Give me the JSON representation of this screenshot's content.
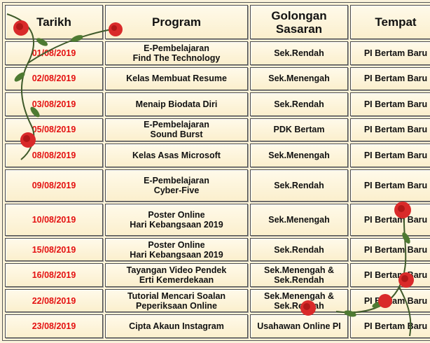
{
  "headers": {
    "date": "Tarikh",
    "program": "Program",
    "target": "Golongan\nSasaran",
    "place": "Tempat"
  },
  "rows": [
    {
      "date": "01/08/2019",
      "program": "E-Pembelajaran\nFind The Technology",
      "target": "Sek.Rendah",
      "place": "PI Bertam Baru"
    },
    {
      "date": "02/08/2019",
      "program": "Kelas Membuat Resume",
      "target": "Sek.Menengah",
      "place": "PI Bertam Baru"
    },
    {
      "date": "03/08/2019",
      "program": "Menaip Biodata Diri",
      "target": "Sek.Rendah",
      "place": "PI Bertam Baru"
    },
    {
      "date": "05/08/2019",
      "program": "E-Pembelajaran\nSound Burst",
      "target": "PDK Bertam",
      "place": "PI Bertam Baru"
    },
    {
      "date": "08/08/2019",
      "program": "Kelas Asas Microsoft",
      "target": "Sek.Menengah",
      "place": "PI Bertam Baru"
    },
    {
      "date": "09/08/2019",
      "program": "E-Pembelajaran\nCyber-Five",
      "target": "Sek.Rendah",
      "place": "PI Bertam Baru"
    },
    {
      "date": "10/08/2019",
      "program": "Poster Online\nHari Kebangsaan 2019",
      "target": "Sek.Menengah",
      "place": "PI Bertam Baru"
    },
    {
      "date": "15/08/2019",
      "program": "Poster Online\nHari Kebangsaan 2019",
      "target": "Sek.Rendah",
      "place": "PI Bertam Baru"
    },
    {
      "date": "16/08/2019",
      "program": "Tayangan Video Pendek\nErti Kemerdekaan",
      "target": "Sek.Menengah &\nSek.Rendah",
      "place": "PI Bertam Baru"
    },
    {
      "date": "22/08/2019",
      "program": "Tutorial Mencari Soalan\nPeperiksaan Online",
      "target": "Sek.Menengah &\nSek.Rendah",
      "place": "PI Bertam Baru"
    },
    {
      "date": "23/08/2019",
      "program": "Cipta Akaun Instagram",
      "target": "Usahawan Online PI",
      "place": "PI Bertam Baru"
    }
  ],
  "colors": {
    "date_text": "#e41111",
    "cell_text": "#111111",
    "rose": "#d92a2a",
    "leaf": "#3f5a2a"
  }
}
